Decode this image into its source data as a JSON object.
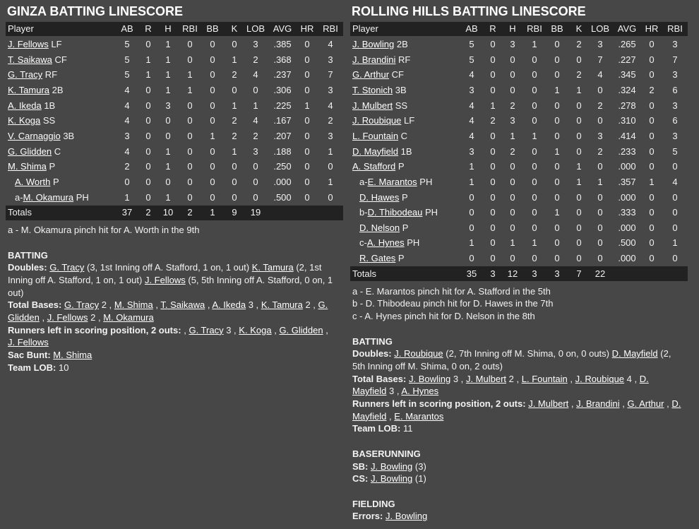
{
  "teams": [
    {
      "title": "GINZA BATTING LINESCORE",
      "columns": [
        "Player",
        "AB",
        "R",
        "H",
        "RBI",
        "BB",
        "K",
        "LOB",
        "AVG",
        "HR",
        "RBI"
      ],
      "rows": [
        {
          "name": "J. Fellows",
          "pos": "LF",
          "stats": [
            5,
            0,
            1,
            0,
            0,
            0,
            3,
            ".385",
            0,
            4
          ]
        },
        {
          "name": "T. Saikawa",
          "pos": "CF",
          "stats": [
            5,
            1,
            1,
            0,
            0,
            1,
            2,
            ".368",
            0,
            3
          ]
        },
        {
          "name": "G. Tracy",
          "pos": "RF",
          "stats": [
            5,
            1,
            1,
            1,
            0,
            2,
            4,
            ".237",
            0,
            7
          ]
        },
        {
          "name": "K. Tamura",
          "pos": "2B",
          "stats": [
            4,
            0,
            1,
            1,
            0,
            0,
            0,
            ".306",
            0,
            3
          ]
        },
        {
          "name": "A. Ikeda",
          "pos": "1B",
          "stats": [
            4,
            0,
            3,
            0,
            0,
            1,
            1,
            ".225",
            1,
            4
          ]
        },
        {
          "name": "K. Koga",
          "pos": "SS",
          "stats": [
            4,
            0,
            0,
            0,
            0,
            2,
            4,
            ".167",
            0,
            2
          ]
        },
        {
          "name": "V. Carnaggio",
          "pos": "3B",
          "stats": [
            3,
            0,
            0,
            0,
            1,
            2,
            2,
            ".207",
            0,
            3
          ]
        },
        {
          "name": "G. Glidden",
          "pos": "C",
          "stats": [
            4,
            0,
            1,
            0,
            0,
            1,
            3,
            ".188",
            0,
            1
          ]
        },
        {
          "name": "M. Shima",
          "pos": "P",
          "stats": [
            2,
            0,
            1,
            0,
            0,
            0,
            0,
            ".250",
            0,
            0
          ]
        },
        {
          "sub": true,
          "name": "A. Worth",
          "pos": "P",
          "stats": [
            0,
            0,
            0,
            0,
            0,
            0,
            0,
            ".000",
            0,
            1
          ]
        },
        {
          "sub": true,
          "prefix": "a-",
          "name": "M. Okamura",
          "pos": "PH",
          "stats": [
            1,
            0,
            1,
            0,
            0,
            0,
            0,
            ".500",
            0,
            0
          ]
        }
      ],
      "totals": {
        "label": "Totals",
        "stats": [
          37,
          2,
          10,
          2,
          1,
          9,
          19
        ]
      },
      "notes": [
        "a - M. Okamura pinch hit for A. Worth in the 9th"
      ],
      "sections": [
        {
          "heading": "BATTING",
          "items": [
            {
              "label": "Doubles:",
              "parts": [
                {
                  "link": "G. Tracy"
                },
                {
                  "text": "(3, 1st Inning off A. Stafford, 1 on, 1 out)"
                },
                {
                  "link": "K. Tamura"
                },
                {
                  "text": "(2, 1st Inning off A. Stafford, 1 on, 1 out)"
                },
                {
                  "link": "J. Fellows"
                },
                {
                  "text": "(5, 5th Inning off A. Stafford, 0 on, 1 out)"
                }
              ]
            },
            {
              "label": "Total Bases:",
              "parts": [
                {
                  "link": "G. Tracy"
                },
                {
                  "text": "2 ,"
                },
                {
                  "link": "M. Shima"
                },
                {
                  "text": ","
                },
                {
                  "link": "T. Saikawa"
                },
                {
                  "text": ","
                },
                {
                  "link": "A. Ikeda"
                },
                {
                  "text": "3 ,"
                },
                {
                  "link": "K. Tamura"
                },
                {
                  "text": "2 ,"
                },
                {
                  "link": "G. Glidden"
                },
                {
                  "text": ","
                },
                {
                  "link": "J. Fellows"
                },
                {
                  "text": "2 ,"
                },
                {
                  "link": "M. Okamura"
                }
              ]
            },
            {
              "label": "Runners left in scoring position, 2 outs:",
              "parts": [
                {
                  "text": ","
                },
                {
                  "link": "G. Tracy"
                },
                {
                  "text": "3 ,"
                },
                {
                  "link": "K. Koga"
                },
                {
                  "text": ","
                },
                {
                  "link": "G. Glidden"
                },
                {
                  "text": ","
                },
                {
                  "link": "J. Fellows"
                }
              ]
            },
            {
              "label": "Sac Bunt:",
              "parts": [
                {
                  "link": "M. Shima"
                }
              ]
            },
            {
              "label": "Team LOB:",
              "parts": [
                {
                  "text": "10"
                }
              ]
            }
          ]
        }
      ]
    },
    {
      "title": "ROLLING HILLS BATTING LINESCORE",
      "columns": [
        "Player",
        "AB",
        "R",
        "H",
        "RBI",
        "BB",
        "K",
        "LOB",
        "AVG",
        "HR",
        "RBI"
      ],
      "rows": [
        {
          "name": "J. Bowling",
          "pos": "2B",
          "stats": [
            5,
            0,
            3,
            1,
            0,
            2,
            3,
            ".265",
            0,
            3
          ]
        },
        {
          "name": "J. Brandini",
          "pos": "RF",
          "stats": [
            5,
            0,
            0,
            0,
            0,
            0,
            7,
            ".227",
            0,
            7
          ]
        },
        {
          "name": "G. Arthur",
          "pos": "CF",
          "stats": [
            4,
            0,
            0,
            0,
            0,
            2,
            4,
            ".345",
            0,
            3
          ]
        },
        {
          "name": "T. Stonich",
          "pos": "3B",
          "stats": [
            3,
            0,
            0,
            0,
            1,
            1,
            0,
            ".324",
            2,
            6
          ]
        },
        {
          "name": "J. Mulbert",
          "pos": "SS",
          "stats": [
            4,
            1,
            2,
            0,
            0,
            0,
            2,
            ".278",
            0,
            3
          ]
        },
        {
          "name": "J. Roubique",
          "pos": "LF",
          "stats": [
            4,
            2,
            3,
            0,
            0,
            0,
            0,
            ".310",
            0,
            6
          ]
        },
        {
          "name": "L. Fountain",
          "pos": "C",
          "stats": [
            4,
            0,
            1,
            1,
            0,
            0,
            3,
            ".414",
            0,
            3
          ]
        },
        {
          "name": "D. Mayfield",
          "pos": "1B",
          "stats": [
            3,
            0,
            2,
            0,
            1,
            0,
            2,
            ".233",
            0,
            5
          ]
        },
        {
          "name": "A. Stafford",
          "pos": "P",
          "stats": [
            1,
            0,
            0,
            0,
            0,
            1,
            0,
            ".000",
            0,
            0
          ]
        },
        {
          "sub": true,
          "prefix": "a-",
          "name": "E. Marantos",
          "pos": "PH",
          "stats": [
            1,
            0,
            0,
            0,
            0,
            1,
            1,
            ".357",
            1,
            4
          ]
        },
        {
          "sub": true,
          "name": "D. Hawes",
          "pos": "P",
          "stats": [
            0,
            0,
            0,
            0,
            0,
            0,
            0,
            ".000",
            0,
            0
          ]
        },
        {
          "sub": true,
          "prefix": "b-",
          "name": "D. Thibodeau",
          "pos": "PH",
          "stats": [
            0,
            0,
            0,
            0,
            1,
            0,
            0,
            ".333",
            0,
            0
          ]
        },
        {
          "sub": true,
          "name": "D. Nelson",
          "pos": "P",
          "stats": [
            0,
            0,
            0,
            0,
            0,
            0,
            0,
            ".000",
            0,
            0
          ]
        },
        {
          "sub": true,
          "prefix": "c-",
          "name": "A. Hynes",
          "pos": "PH",
          "stats": [
            1,
            0,
            1,
            1,
            0,
            0,
            0,
            ".500",
            0,
            1
          ]
        },
        {
          "sub": true,
          "name": "R. Gates",
          "pos": "P",
          "stats": [
            0,
            0,
            0,
            0,
            0,
            0,
            0,
            ".000",
            0,
            0
          ]
        }
      ],
      "totals": {
        "label": "Totals",
        "stats": [
          35,
          3,
          12,
          3,
          3,
          7,
          22
        ]
      },
      "notes": [
        "a - E. Marantos pinch hit for A. Stafford in the 5th",
        "b - D. Thibodeau pinch hit for D. Hawes in the 7th",
        "c - A. Hynes pinch hit for D. Nelson in the 8th"
      ],
      "sections": [
        {
          "heading": "BATTING",
          "items": [
            {
              "label": "Doubles:",
              "parts": [
                {
                  "link": "J. Roubique"
                },
                {
                  "text": "(2, 7th Inning off M. Shima, 0 on, 0 outs)"
                },
                {
                  "link": "D. Mayfield"
                },
                {
                  "text": "(2, 5th Inning off M. Shima, 0 on, 2 outs)"
                }
              ]
            },
            {
              "label": "Total Bases:",
              "parts": [
                {
                  "link": "J. Bowling"
                },
                {
                  "text": "3 ,"
                },
                {
                  "link": "J. Mulbert"
                },
                {
                  "text": "2 ,"
                },
                {
                  "link": "L. Fountain"
                },
                {
                  "text": ","
                },
                {
                  "link": "J. Roubique"
                },
                {
                  "text": "4 ,"
                },
                {
                  "link": "D. Mayfield"
                },
                {
                  "text": "3 ,"
                },
                {
                  "link": "A. Hynes"
                }
              ]
            },
            {
              "label": "Runners left in scoring position, 2 outs:",
              "parts": [
                {
                  "link": "J. Mulbert"
                },
                {
                  "text": ","
                },
                {
                  "link": "J. Brandini"
                },
                {
                  "text": ","
                },
                {
                  "link": "G. Arthur"
                },
                {
                  "text": ","
                },
                {
                  "link": "D. Mayfield"
                },
                {
                  "text": ","
                },
                {
                  "link": "E. Marantos"
                }
              ]
            },
            {
              "label": "Team LOB:",
              "parts": [
                {
                  "text": "11"
                }
              ]
            }
          ]
        },
        {
          "heading": "BASERUNNING",
          "items": [
            {
              "label": "SB:",
              "parts": [
                {
                  "link": "J. Bowling"
                },
                {
                  "text": "(3)"
                }
              ]
            },
            {
              "label": "CS:",
              "parts": [
                {
                  "link": "J. Bowling"
                },
                {
                  "text": "(1)"
                }
              ]
            }
          ]
        },
        {
          "heading": "FIELDING",
          "items": [
            {
              "label": "Errors:",
              "parts": [
                {
                  "link": "J. Bowling"
                }
              ]
            }
          ]
        }
      ]
    }
  ]
}
